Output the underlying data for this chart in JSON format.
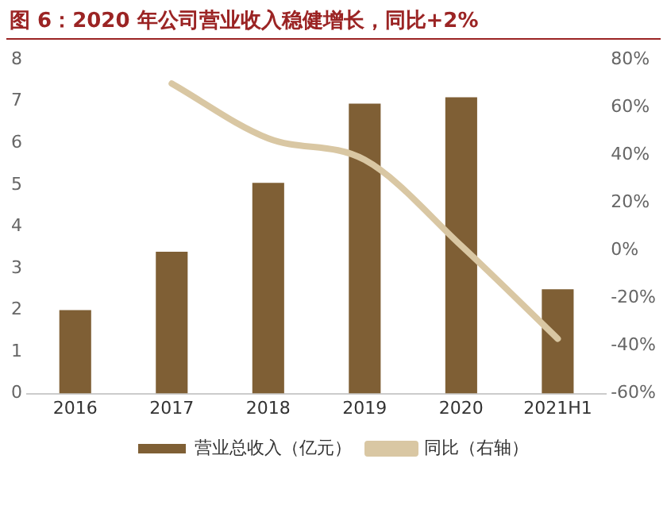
{
  "chart_data": {
    "type": "bar",
    "title": "图 6：2020 年公司营业收入稳健增长，同比+2%",
    "categories": [
      "2016",
      "2017",
      "2018",
      "2019",
      "2020",
      "2021H1"
    ],
    "series": [
      {
        "name": "营业总收入（亿元）",
        "color": "#7f5f35",
        "values": [
          2.0,
          3.4,
          5.05,
          6.95,
          7.1,
          2.5
        ]
      },
      {
        "name": "同比（右轴）",
        "type": "line",
        "axis": "y2",
        "color": "#d9c7a3",
        "values": [
          null,
          70,
          47,
          38,
          2,
          -37
        ]
      }
    ],
    "ylim": [
      0,
      8
    ],
    "yticks": [
      0,
      1,
      2,
      3,
      4,
      5,
      6,
      7,
      8
    ],
    "y2lim": [
      -60,
      80
    ],
    "y2ticks": [
      {
        "value": -60,
        "label": "-60%"
      },
      {
        "value": -40,
        "label": "-40%"
      },
      {
        "value": -20,
        "label": "-20%"
      },
      {
        "value": 0,
        "label": "0%"
      },
      {
        "value": 20,
        "label": "20%"
      },
      {
        "value": 40,
        "label": "40%"
      },
      {
        "value": 60,
        "label": "60%"
      },
      {
        "value": 80,
        "label": "80%"
      }
    ],
    "grid": false,
    "legend": "bottom",
    "marker": "none"
  }
}
